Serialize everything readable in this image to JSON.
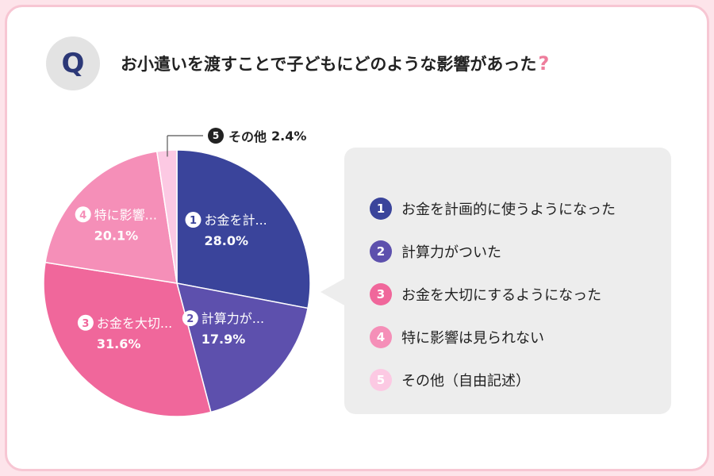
{
  "header": {
    "q_badge": "Q",
    "question": "お小遣いを渡すことで子どもにどのような影響があった",
    "question_mark": "?"
  },
  "chart_data": {
    "type": "pie",
    "slices": [
      {
        "num": "1",
        "label": "お金を計画的に使うようになった",
        "short_label": "お金を計...",
        "value": 28.0,
        "value_label": "28.0%",
        "color": "#3a449b"
      },
      {
        "num": "2",
        "label": "計算力がついた",
        "short_label": "計算力が...",
        "value": 17.9,
        "value_label": "17.9%",
        "color": "#5d50ad"
      },
      {
        "num": "3",
        "label": "お金を大切にするようになった",
        "short_label": "お金を大切...",
        "value": 31.6,
        "value_label": "31.6%",
        "color": "#f0679b"
      },
      {
        "num": "4",
        "label": "特に影響は見られない",
        "short_label": "特に影響...",
        "value": 20.1,
        "value_label": "20.1%",
        "color": "#f58fb8"
      },
      {
        "num": "5",
        "label": "その他（自由記述）",
        "short_label": "その他",
        "value": 2.4,
        "value_label": "2.4%",
        "color": "#fcc9e3"
      }
    ],
    "callout": {
      "num": "5",
      "label": "その他",
      "value_label": "2.4%"
    }
  }
}
